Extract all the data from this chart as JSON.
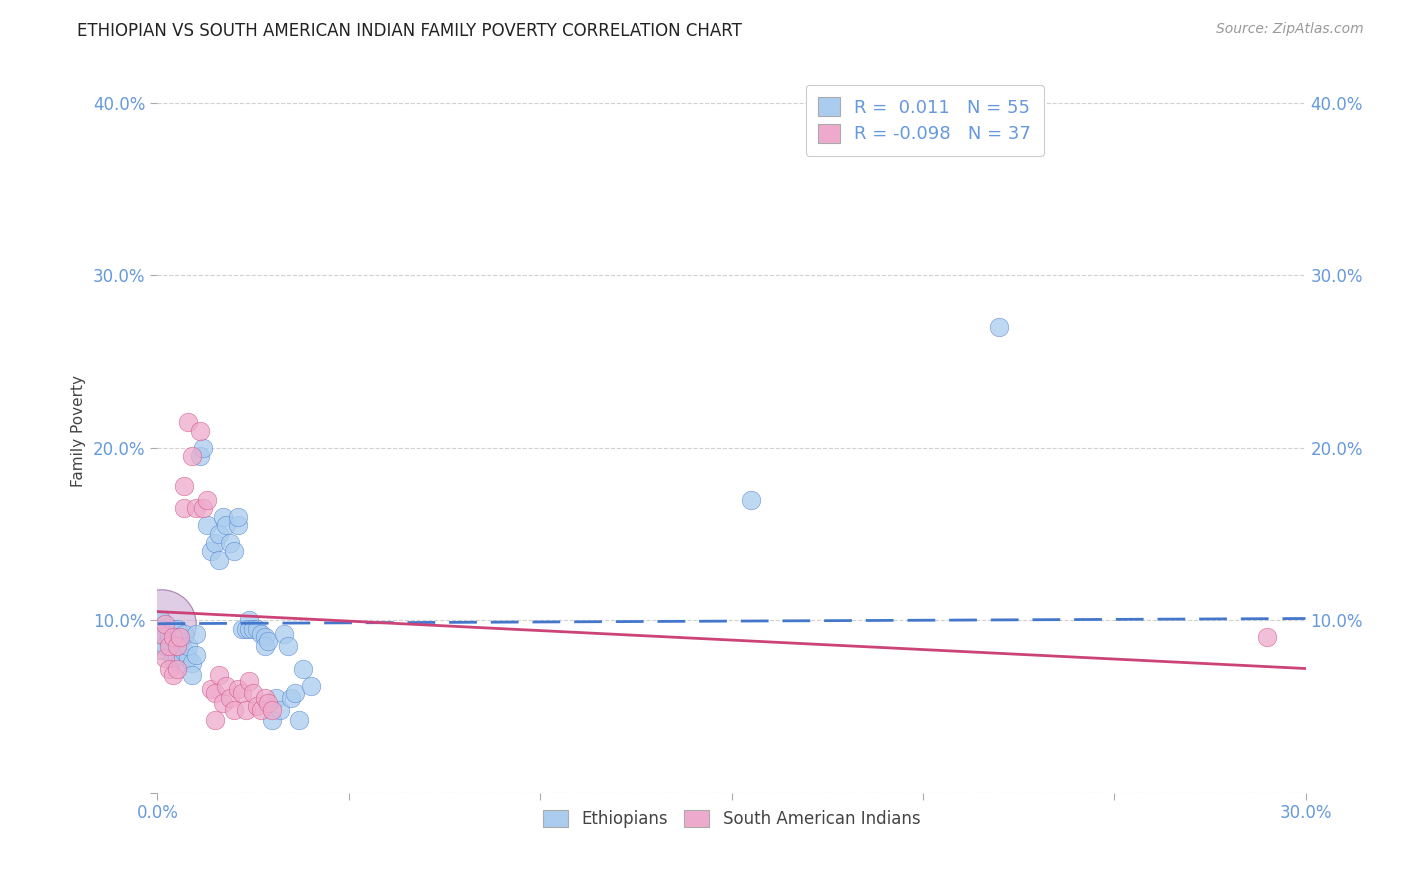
{
  "title": "ETHIOPIAN VS SOUTH AMERICAN INDIAN FAMILY POVERTY CORRELATION CHART",
  "source": "Source: ZipAtlas.com",
  "tick_color": "#6699dd",
  "ylabel": "Family Poverty",
  "xlim": [
    0.0,
    0.3
  ],
  "ylim": [
    0.0,
    0.42
  ],
  "xticks": [
    0.0,
    0.05,
    0.1,
    0.15,
    0.2,
    0.25,
    0.3
  ],
  "yticks": [
    0.0,
    0.1,
    0.2,
    0.3,
    0.4
  ],
  "ytick_labels_left": [
    "",
    "10.0%",
    "20.0%",
    "30.0%",
    "40.0%"
  ],
  "ytick_labels_right": [
    "",
    "10.0%",
    "20.0%",
    "30.0%",
    "40.0%"
  ],
  "xtick_labels": [
    "0.0%",
    "",
    "",
    "",
    "",
    "",
    "30.0%"
  ],
  "grid_color": "#cccccc",
  "background_color": "#ffffff",
  "ethiopian_color": "#aaccee",
  "south_american_color": "#eeaacc",
  "ethiopian_line_color": "#4477cc",
  "south_american_line_color": "#cc4477",
  "R_ethiopian": 0.011,
  "N_ethiopian": 55,
  "R_south_american": -0.098,
  "N_south_american": 37,
  "legend_label_1": "Ethiopians",
  "legend_label_2": "South American Indians",
  "eth_trend_x": [
    0.0,
    0.3
  ],
  "eth_trend_y": [
    0.098,
    0.101
  ],
  "sam_trend_x": [
    0.0,
    0.3
  ],
  "sam_trend_y": [
    0.105,
    0.072
  ],
  "ethiopians_x": [
    0.001,
    0.001,
    0.002,
    0.002,
    0.003,
    0.003,
    0.004,
    0.004,
    0.005,
    0.005,
    0.006,
    0.006,
    0.007,
    0.007,
    0.008,
    0.008,
    0.009,
    0.009,
    0.01,
    0.01,
    0.011,
    0.012,
    0.013,
    0.014,
    0.015,
    0.016,
    0.016,
    0.017,
    0.018,
    0.019,
    0.02,
    0.021,
    0.021,
    0.022,
    0.023,
    0.024,
    0.024,
    0.025,
    0.026,
    0.027,
    0.028,
    0.028,
    0.029,
    0.03,
    0.031,
    0.032,
    0.033,
    0.034,
    0.035,
    0.036,
    0.037,
    0.038,
    0.04,
    0.155,
    0.22
  ],
  "ethiopians_y": [
    0.1,
    0.095,
    0.09,
    0.085,
    0.092,
    0.088,
    0.078,
    0.095,
    0.08,
    0.095,
    0.088,
    0.075,
    0.082,
    0.092,
    0.078,
    0.085,
    0.075,
    0.068,
    0.08,
    0.092,
    0.195,
    0.2,
    0.155,
    0.14,
    0.145,
    0.15,
    0.135,
    0.16,
    0.155,
    0.145,
    0.14,
    0.155,
    0.16,
    0.095,
    0.095,
    0.1,
    0.095,
    0.095,
    0.095,
    0.092,
    0.09,
    0.085,
    0.088,
    0.042,
    0.055,
    0.048,
    0.092,
    0.085,
    0.055,
    0.058,
    0.042,
    0.072,
    0.062,
    0.17,
    0.27
  ],
  "south_american_x": [
    0.001,
    0.002,
    0.002,
    0.003,
    0.003,
    0.004,
    0.004,
    0.005,
    0.005,
    0.006,
    0.007,
    0.007,
    0.008,
    0.009,
    0.01,
    0.011,
    0.012,
    0.013,
    0.014,
    0.015,
    0.015,
    0.016,
    0.017,
    0.018,
    0.019,
    0.02,
    0.021,
    0.022,
    0.023,
    0.024,
    0.025,
    0.026,
    0.027,
    0.028,
    0.029,
    0.03,
    0.29
  ],
  "south_american_y": [
    0.092,
    0.098,
    0.078,
    0.085,
    0.072,
    0.09,
    0.068,
    0.085,
    0.072,
    0.09,
    0.178,
    0.165,
    0.215,
    0.195,
    0.165,
    0.21,
    0.165,
    0.17,
    0.06,
    0.058,
    0.042,
    0.068,
    0.052,
    0.062,
    0.055,
    0.048,
    0.06,
    0.058,
    0.048,
    0.065,
    0.058,
    0.05,
    0.048,
    0.055,
    0.052,
    0.048,
    0.09
  ],
  "large_bubble_x": [
    0.001
  ],
  "large_bubble_y": [
    0.098
  ]
}
